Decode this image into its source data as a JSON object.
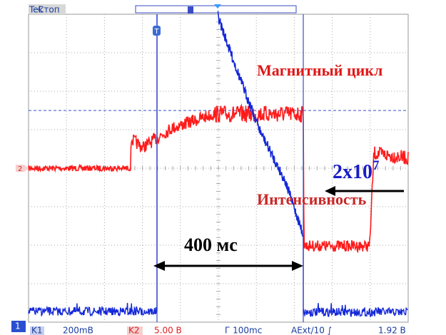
{
  "header": {
    "brand": "Tek",
    "state": "Стоп"
  },
  "annotations": {
    "magnet": "Магнитный цикл",
    "intensity_base": "2x10",
    "intensity_exp": "7",
    "intensity": "Интенсивность",
    "duration": "400 мс"
  },
  "markers": {
    "ch1": "1",
    "ch2": "2",
    "trigger": "T"
  },
  "status": {
    "ch1_label": "K1",
    "ch1_scale": "200mB",
    "ch2_label": "K2",
    "ch2_scale": "5.00 B",
    "time": "Г 100mc",
    "trigger": "AExt/10 ∫",
    "level": "1.92 B"
  }
}
